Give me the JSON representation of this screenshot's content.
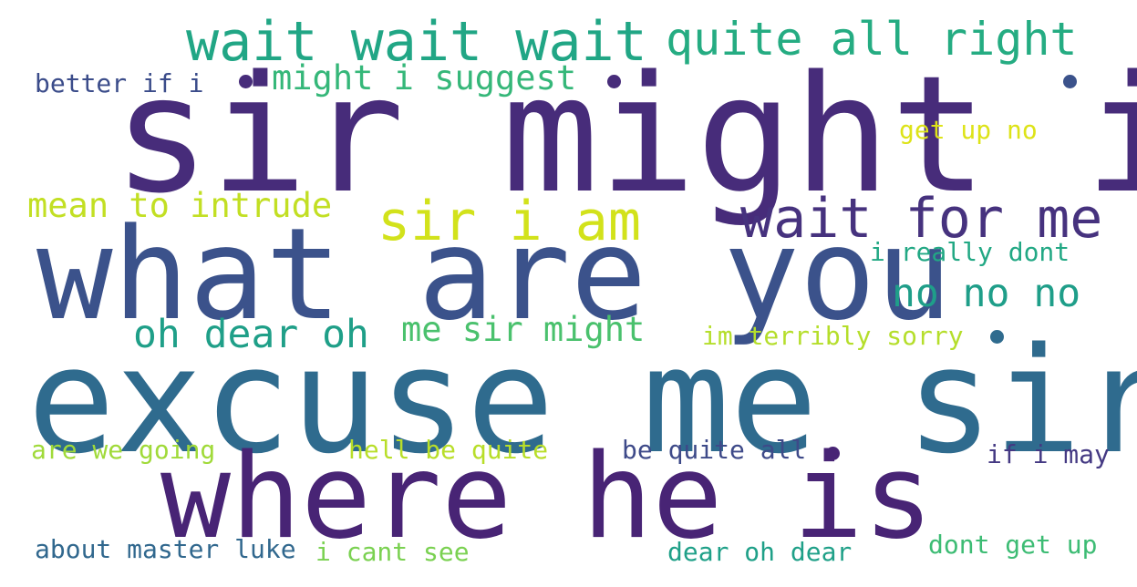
{
  "words": [
    {
      "text": "sir might i",
      "color": "#472c7a"
    },
    {
      "text": "excuse me sir",
      "color": "#2f6b8e"
    },
    {
      "text": "what are you",
      "color": "#3b528b"
    },
    {
      "text": "where he is",
      "color": "#482475"
    },
    {
      "text": "wait wait wait",
      "color": "#21a685"
    },
    {
      "text": "quite all right",
      "color": "#25ac82"
    },
    {
      "text": "might i suggest",
      "color": "#35b779"
    },
    {
      "text": "better if i",
      "color": "#3b4c8a"
    },
    {
      "text": "get up no",
      "color": "#dde318"
    },
    {
      "text": "mean to intrude",
      "color": "#c2df23"
    },
    {
      "text": "sir i am",
      "color": "#d2e21b"
    },
    {
      "text": "wait for me",
      "color": "#46327e"
    },
    {
      "text": "i really dont",
      "color": "#22a884"
    },
    {
      "text": "no no no",
      "color": "#1f9e89"
    },
    {
      "text": "oh dear oh",
      "color": "#1f9f88"
    },
    {
      "text": "me sir might",
      "color": "#4ac16d"
    },
    {
      "text": "im terribly sorry",
      "color": "#b5de2b"
    },
    {
      "text": "are we going",
      "color": "#a0da39"
    },
    {
      "text": "hell be quite",
      "color": "#b8de29"
    },
    {
      "text": "be quite all",
      "color": "#3e4a89"
    },
    {
      "text": "if i may",
      "color": "#443983"
    },
    {
      "text": "about master luke",
      "color": "#31688e"
    },
    {
      "text": "i cant see",
      "color": "#7ad151"
    },
    {
      "text": "dear oh dear",
      "color": "#1fa088"
    },
    {
      "text": "dont get up",
      "color": "#3dbc74"
    }
  ],
  "dots": [
    {
      "color": "#472c7a"
    },
    {
      "color": "#472c7a"
    },
    {
      "color": "#3b528b"
    },
    {
      "color": "#482475"
    },
    {
      "color": "#2f6b8e"
    }
  ]
}
